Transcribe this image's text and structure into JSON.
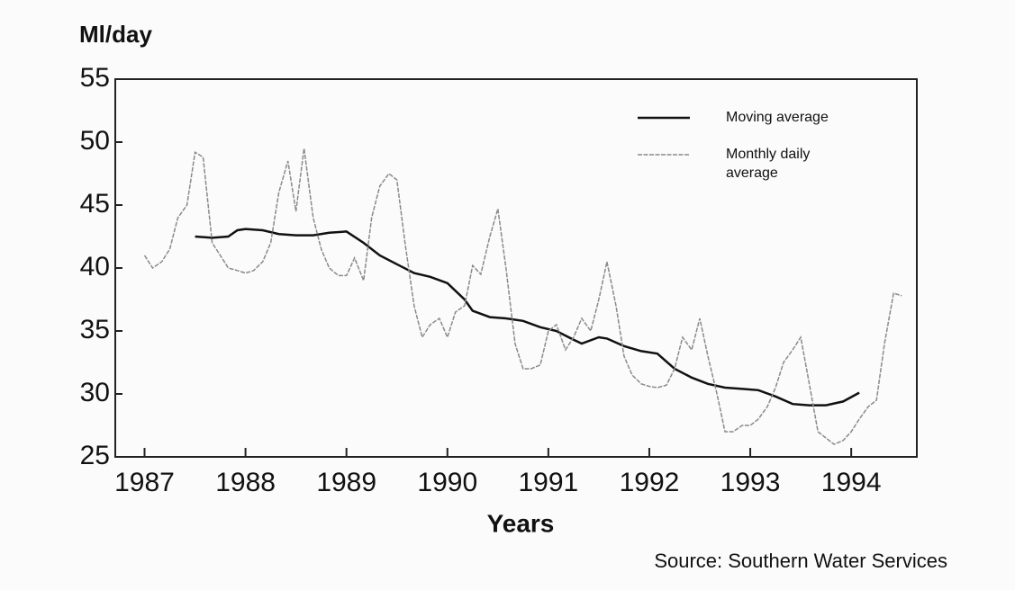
{
  "chart_data": {
    "type": "line",
    "y_label": "Ml/day",
    "x_label": "Years",
    "source": "Source: Southern Water Services",
    "xlim": [
      1986.71,
      1994.65
    ],
    "xticks": [
      1987,
      1988,
      1989,
      1990,
      1991,
      1992,
      1993,
      1994
    ],
    "ylim": [
      25,
      55
    ],
    "yticks": [
      25,
      30,
      35,
      40,
      45,
      50,
      55
    ],
    "legend": "top-right",
    "series": [
      {
        "name": "Moving average",
        "color": "#111111",
        "x": [
          1987.5,
          1987.67,
          1987.83,
          1987.92,
          1988.0,
          1988.17,
          1988.33,
          1988.5,
          1988.67,
          1988.83,
          1989.0,
          1989.17,
          1989.33,
          1989.5,
          1989.67,
          1989.83,
          1990.0,
          1990.17,
          1990.25,
          1990.42,
          1990.58,
          1990.75,
          1990.92,
          1991.08,
          1991.25,
          1991.33,
          1991.5,
          1991.58,
          1991.75,
          1991.92,
          1992.08,
          1992.25,
          1992.42,
          1992.58,
          1992.75,
          1992.92,
          1993.08,
          1993.25,
          1993.42,
          1993.58,
          1993.75,
          1993.92,
          1994.08
        ],
        "values": [
          42.5,
          42.4,
          42.5,
          43,
          43.1,
          43,
          42.7,
          42.6,
          42.6,
          42.8,
          42.9,
          42,
          41,
          40.3,
          39.6,
          39.3,
          38.8,
          37.5,
          36.6,
          36.1,
          36,
          35.8,
          35.3,
          35,
          34.3,
          34,
          34.5,
          34.4,
          33.8,
          33.4,
          33.2,
          32,
          31.3,
          30.8,
          30.5,
          30.4,
          30.3,
          29.8,
          29.2,
          29.1,
          29.1,
          29.4,
          30.1
        ]
      },
      {
        "name": "Monthly daily average",
        "color": "#8a8a8a",
        "x": [
          1987.0,
          1987.08,
          1987.17,
          1987.25,
          1987.33,
          1987.42,
          1987.5,
          1987.58,
          1987.67,
          1987.75,
          1987.83,
          1987.92,
          1988.0,
          1988.08,
          1988.17,
          1988.25,
          1988.33,
          1988.42,
          1988.5,
          1988.58,
          1988.67,
          1988.75,
          1988.83,
          1988.92,
          1989.0,
          1989.08,
          1989.17,
          1989.25,
          1989.33,
          1989.42,
          1989.5,
          1989.58,
          1989.67,
          1989.75,
          1989.83,
          1989.92,
          1990.0,
          1990.08,
          1990.17,
          1990.25,
          1990.33,
          1990.42,
          1990.5,
          1990.58,
          1990.67,
          1990.75,
          1990.83,
          1990.92,
          1991.0,
          1991.08,
          1991.17,
          1991.25,
          1991.33,
          1991.42,
          1991.5,
          1991.58,
          1991.67,
          1991.75,
          1991.83,
          1991.92,
          1992.0,
          1992.08,
          1992.17,
          1992.25,
          1992.33,
          1992.42,
          1992.5,
          1992.58,
          1992.67,
          1992.75,
          1992.83,
          1992.92,
          1993.0,
          1993.08,
          1993.17,
          1993.25,
          1993.33,
          1993.42,
          1993.5,
          1993.58,
          1993.67,
          1993.75,
          1993.83,
          1993.92,
          1994.0,
          1994.08,
          1994.17,
          1994.25,
          1994.33,
          1994.42,
          1994.5
        ],
        "values": [
          41,
          40,
          40.5,
          41.5,
          44,
          45,
          49.2,
          48.8,
          42,
          41,
          40,
          39.8,
          39.6,
          39.8,
          40.5,
          42,
          46,
          48.5,
          44.5,
          49.5,
          44,
          41.5,
          40,
          39.4,
          39.4,
          40.8,
          39,
          44,
          46.5,
          47.5,
          47,
          42,
          37,
          34.5,
          35.5,
          36,
          34.5,
          36.5,
          37,
          40.2,
          39.5,
          42.5,
          44.7,
          40,
          34,
          32,
          32,
          32.3,
          35,
          35.5,
          33.5,
          34.5,
          36,
          35,
          37.5,
          40.5,
          37,
          33,
          31.5,
          30.8,
          30.6,
          30.5,
          30.7,
          32,
          34.5,
          33.5,
          36,
          33,
          30,
          27,
          27,
          27.5,
          27.5,
          28,
          29,
          30.5,
          32.5,
          33.5,
          34.5,
          31,
          27,
          26.5,
          26,
          26.3,
          27,
          28,
          29,
          29.5,
          34,
          38,
          37.8
        ]
      }
    ]
  }
}
